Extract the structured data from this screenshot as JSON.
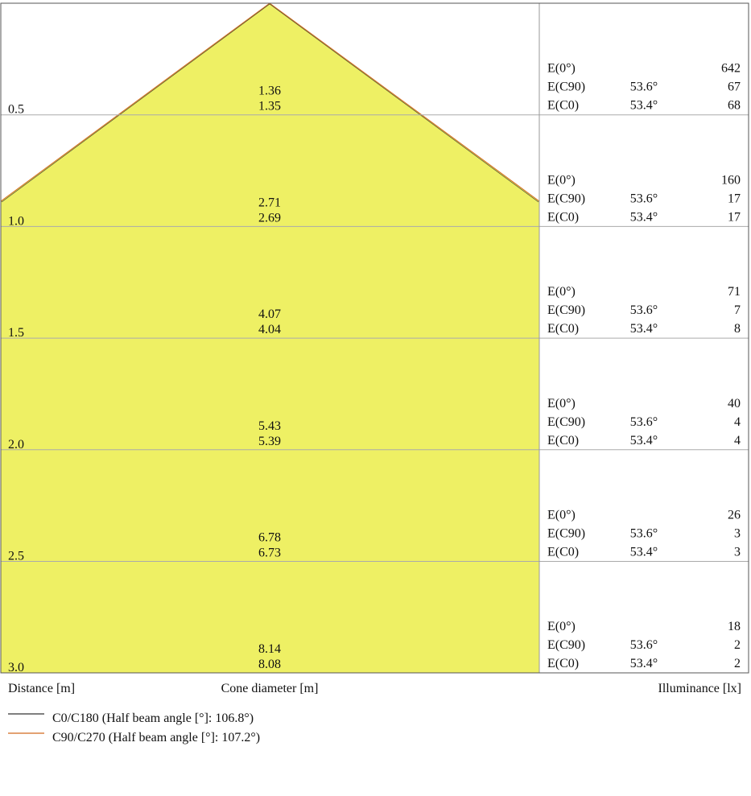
{
  "rows": [
    {
      "distance": "0.5",
      "diameter_1": "1.36",
      "diameter_2": "1.35",
      "e0_label": "E(0°)",
      "e0": "642",
      "ec90_label": "E(C90)",
      "ec90_angle": "53.6°",
      "ec90": "67",
      "ec0_label": "E(C0)",
      "ec0_angle": "53.4°",
      "ec0": "68"
    },
    {
      "distance": "1.0",
      "diameter_1": "2.71",
      "diameter_2": "2.69",
      "e0_label": "E(0°)",
      "e0": "160",
      "ec90_label": "E(C90)",
      "ec90_angle": "53.6°",
      "ec90": "17",
      "ec0_label": "E(C0)",
      "ec0_angle": "53.4°",
      "ec0": "17"
    },
    {
      "distance": "1.5",
      "diameter_1": "4.07",
      "diameter_2": "4.04",
      "e0_label": "E(0°)",
      "e0": "71",
      "ec90_label": "E(C90)",
      "ec90_angle": "53.6°",
      "ec90": "7",
      "ec0_label": "E(C0)",
      "ec0_angle": "53.4°",
      "ec0": "8"
    },
    {
      "distance": "2.0",
      "diameter_1": "5.43",
      "diameter_2": "5.39",
      "e0_label": "E(0°)",
      "e0": "40",
      "ec90_label": "E(C90)",
      "ec90_angle": "53.6°",
      "ec90": "4",
      "ec0_label": "E(C0)",
      "ec0_angle": "53.4°",
      "ec0": "4"
    },
    {
      "distance": "2.5",
      "diameter_1": "6.78",
      "diameter_2": "6.73",
      "e0_label": "E(0°)",
      "e0": "26",
      "ec90_label": "E(C90)",
      "ec90_angle": "53.6°",
      "ec90": "3",
      "ec0_label": "E(C0)",
      "ec0_angle": "53.4°",
      "ec0": "3"
    },
    {
      "distance": "3.0",
      "diameter_1": "8.14",
      "diameter_2": "8.08",
      "e0_label": "E(0°)",
      "e0": "18",
      "ec90_label": "E(C90)",
      "ec90_angle": "53.6°",
      "ec90": "2",
      "ec0_label": "E(C0)",
      "ec0_angle": "53.4°",
      "ec0": "2"
    }
  ],
  "footer": {
    "distance": "Distance [m]",
    "diameter": "Cone diameter [m]",
    "illuminance": "Illuminance [lx]"
  },
  "legend": [
    {
      "label": "C0/C180 (Half beam angle [°]: 106.8°)",
      "color": "#333333"
    },
    {
      "label": "C90/C270 (Half beam angle [°]: 107.2°)",
      "color": "#d2691e"
    }
  ]
}
